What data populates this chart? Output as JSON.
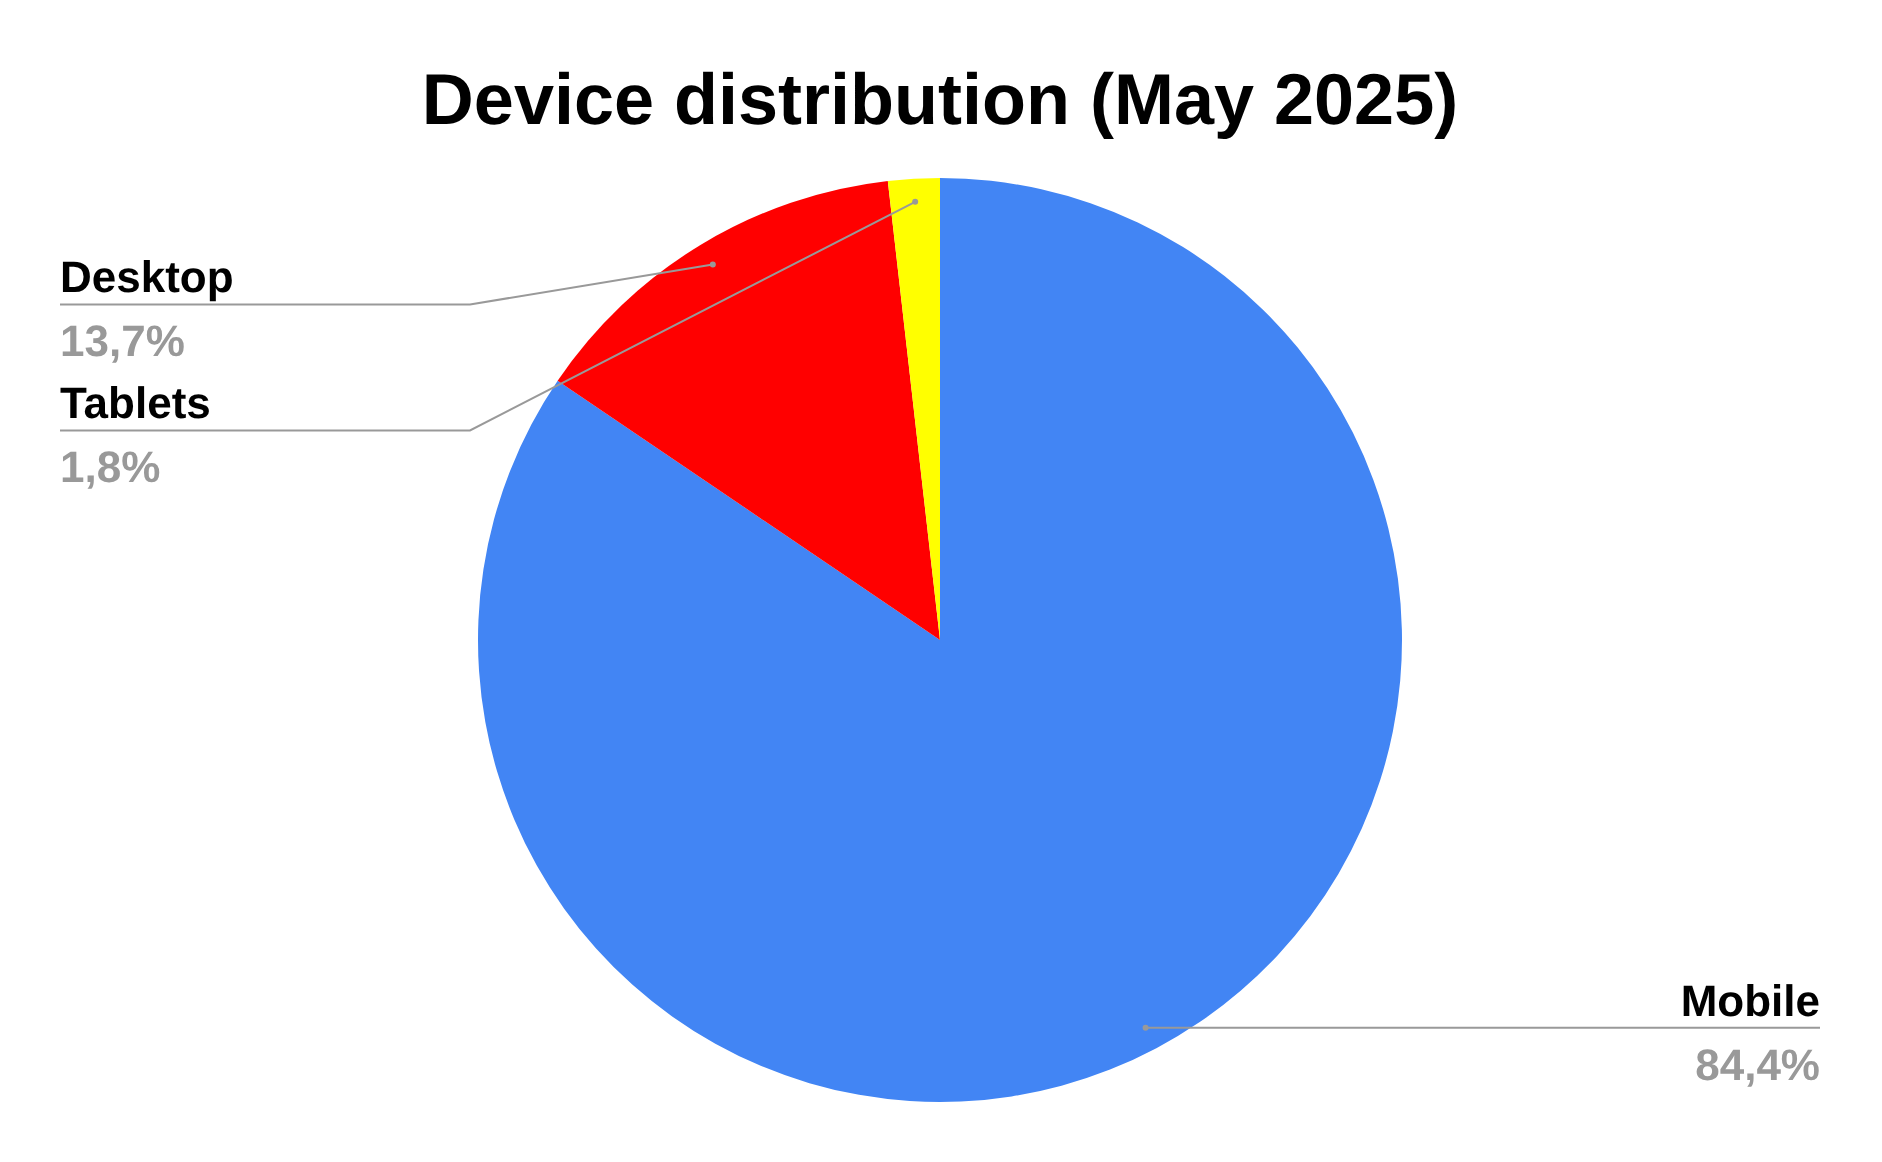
{
  "chart_data": {
    "type": "pie",
    "title": "Device distribution (May 2025)",
    "categories": [
      "Mobile",
      "Desktop",
      "Tablets"
    ],
    "values": [
      84.4,
      13.7,
      1.8
    ],
    "colors": [
      "#4285f4",
      "#ff0000",
      "#ffff00"
    ],
    "value_labels": [
      "84,4%",
      "13,7%",
      "1,8%"
    ]
  }
}
